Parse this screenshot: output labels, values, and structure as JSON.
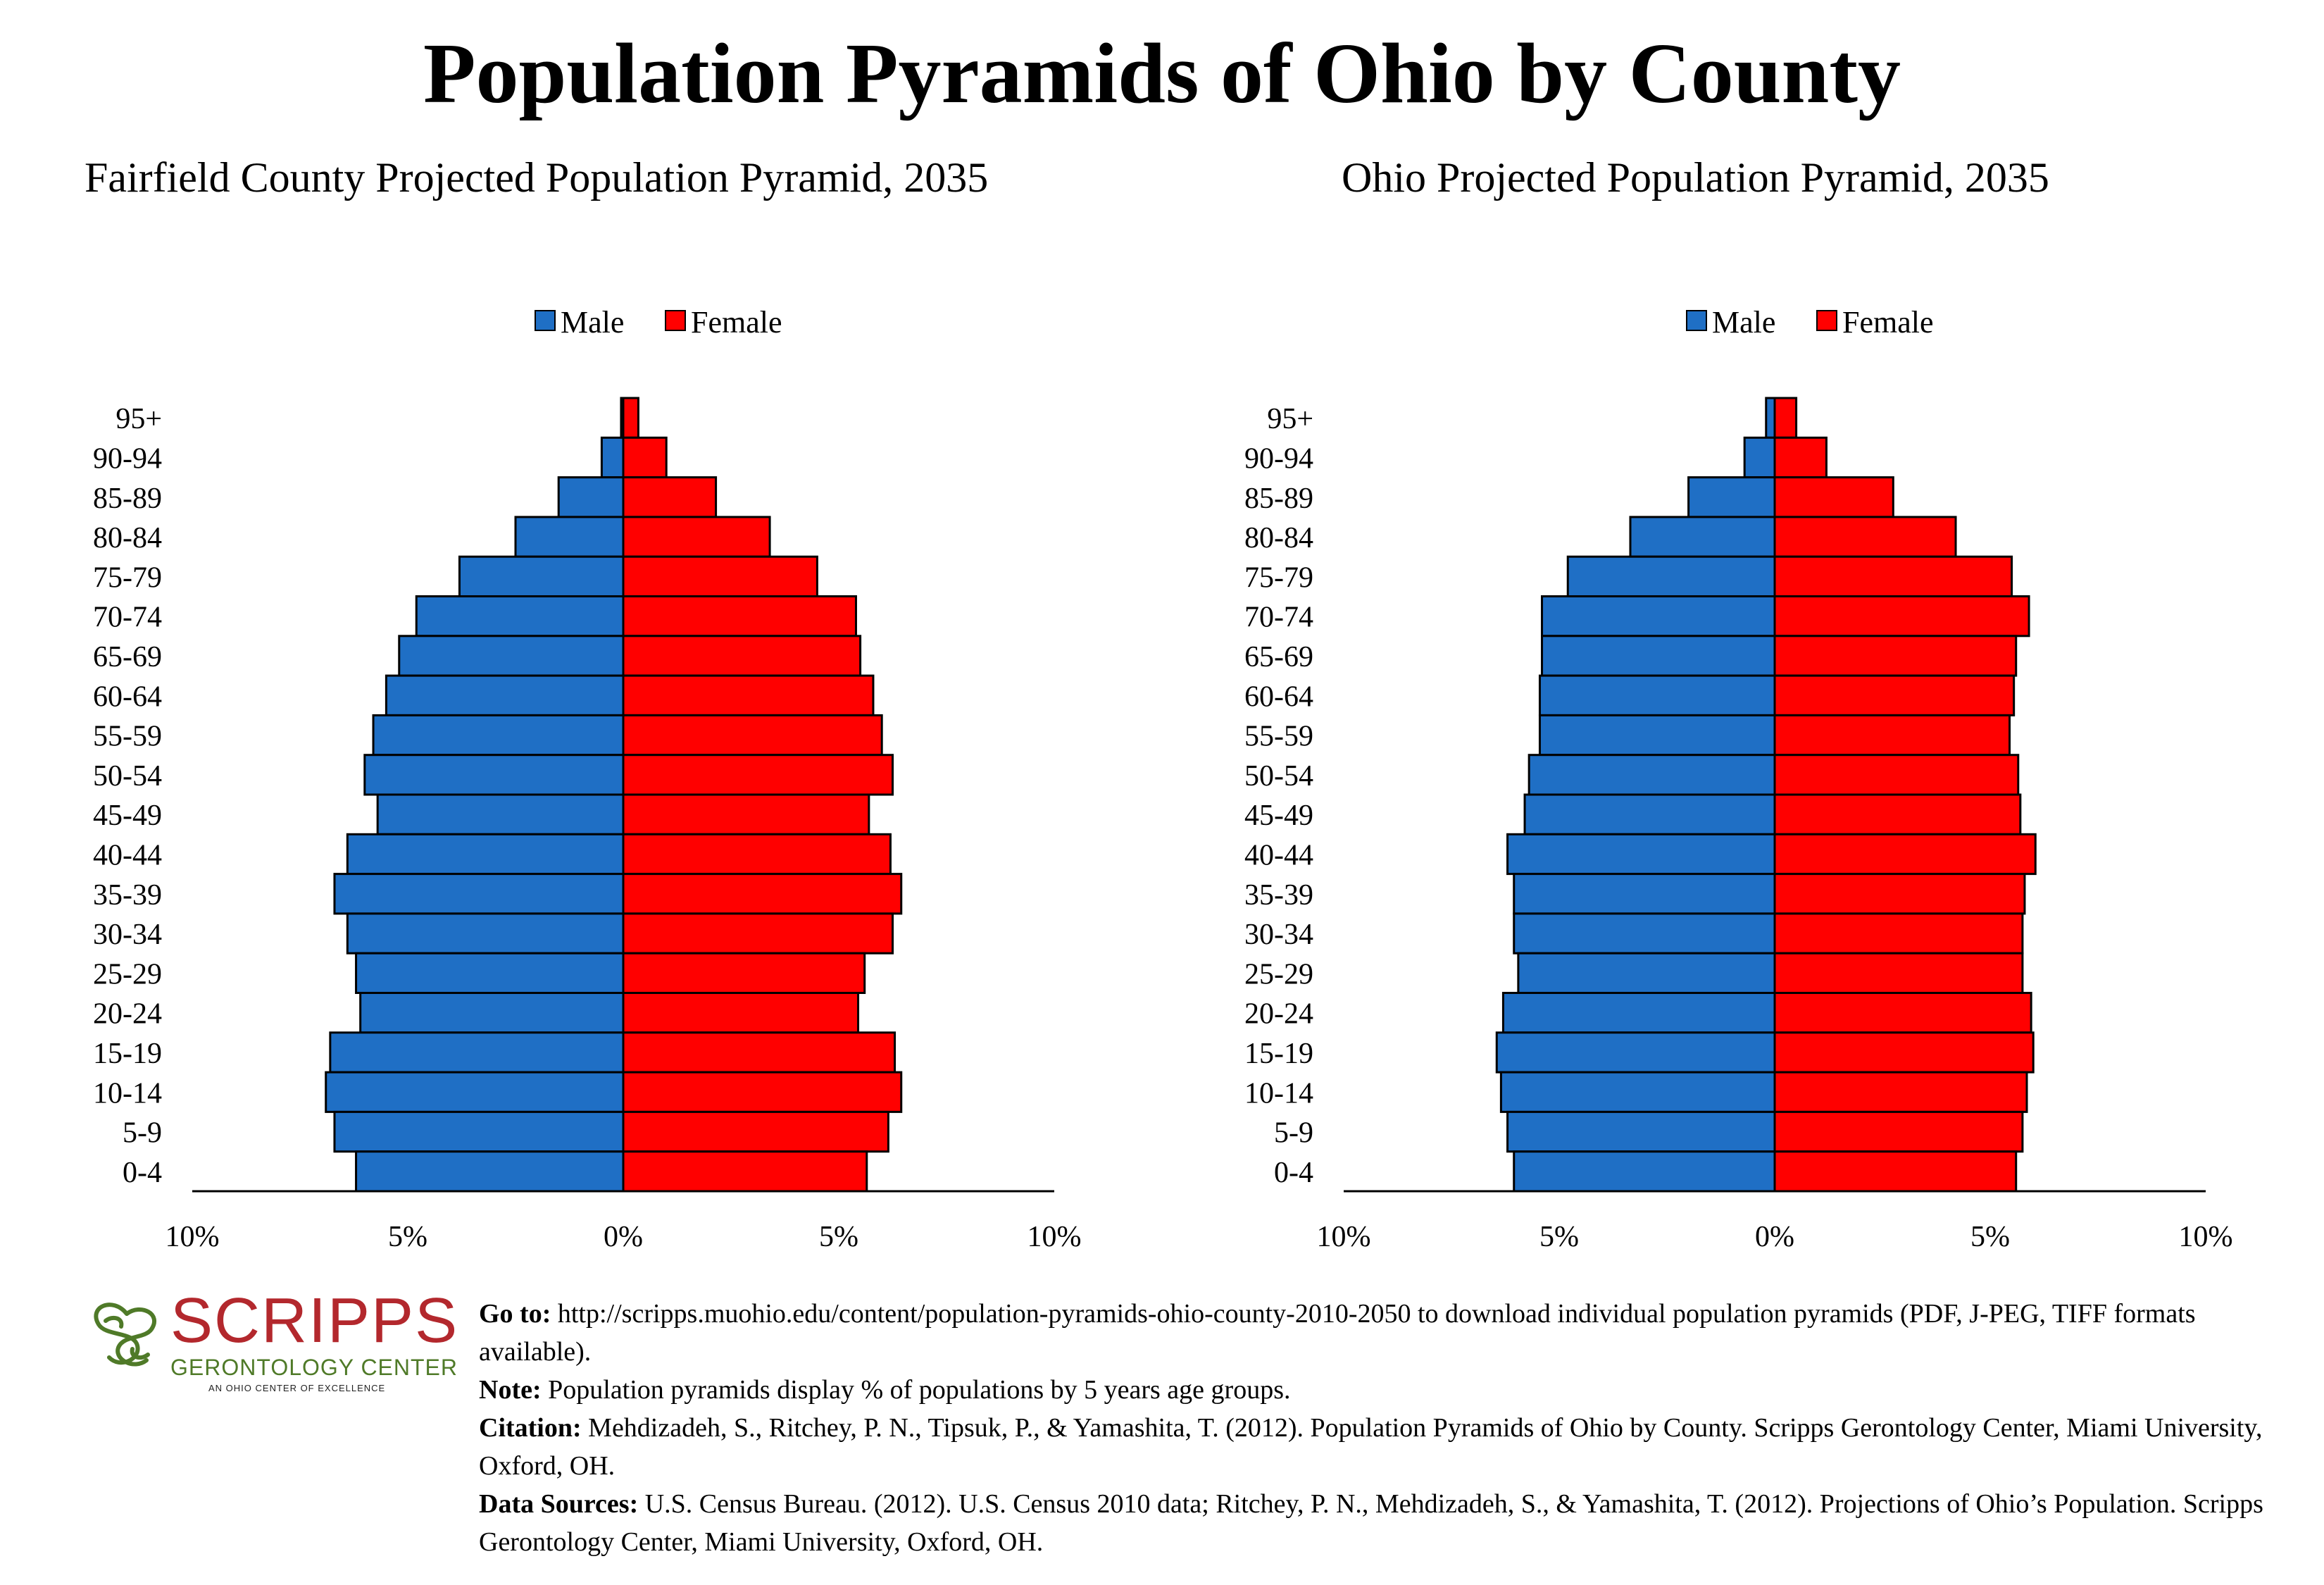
{
  "title": "Population Pyramids of Ohio by County",
  "age_groups": [
    "95+",
    "90-94",
    "85-89",
    "80-84",
    "75-79",
    "70-74",
    "65-69",
    "60-64",
    "55-59",
    "50-54",
    "45-49",
    "40-44",
    "35-39",
    "30-34",
    "25-29",
    "20-24",
    "15-19",
    "10-14",
    "5-9",
    "0-4"
  ],
  "x_ticks": [
    "10%",
    "5%",
    "0%",
    "5%",
    "10%"
  ],
  "colors": {
    "male": "#1f6fc5",
    "female": "#ff0000",
    "logo_red": "#b3282d",
    "logo_green": "#4f7a28"
  },
  "chart_data": [
    {
      "type": "bar",
      "orientation": "horizontal-pyramid",
      "title": "Fairfield County Projected Population Pyramid, 2035",
      "unit": "% of population",
      "xlim": [
        -10,
        10
      ],
      "legend": {
        "placement": "top-center",
        "items": [
          "Male",
          "Female"
        ]
      },
      "categories": [
        "95+",
        "90-94",
        "85-89",
        "80-84",
        "75-79",
        "70-74",
        "65-69",
        "60-64",
        "55-59",
        "50-54",
        "45-49",
        "40-44",
        "35-39",
        "30-34",
        "25-29",
        "20-24",
        "15-19",
        "10-14",
        "5-9",
        "0-4"
      ],
      "series": [
        {
          "name": "Male",
          "values": [
            0.05,
            0.5,
            1.5,
            2.5,
            3.8,
            4.8,
            5.2,
            5.5,
            5.8,
            6.0,
            5.7,
            6.4,
            6.7,
            6.4,
            6.2,
            6.1,
            6.8,
            6.9,
            6.7,
            6.2
          ]
        },
        {
          "name": "Female",
          "values": [
            0.35,
            1.0,
            2.15,
            3.4,
            4.5,
            5.4,
            5.5,
            5.8,
            6.0,
            6.25,
            5.7,
            6.2,
            6.45,
            6.25,
            5.6,
            5.45,
            6.3,
            6.45,
            6.15,
            5.65
          ]
        }
      ]
    },
    {
      "type": "bar",
      "orientation": "horizontal-pyramid",
      "title": "Ohio Projected Population Pyramid, 2035",
      "unit": "% of population",
      "xlim": [
        -10,
        10
      ],
      "legend": {
        "placement": "top-center",
        "items": [
          "Male",
          "Female"
        ]
      },
      "categories": [
        "95+",
        "90-94",
        "85-89",
        "80-84",
        "75-79",
        "70-74",
        "65-69",
        "60-64",
        "55-59",
        "50-54",
        "45-49",
        "40-44",
        "35-39",
        "30-34",
        "25-29",
        "20-24",
        "15-19",
        "10-14",
        "5-9",
        "0-4"
      ],
      "series": [
        {
          "name": "Male",
          "values": [
            0.2,
            0.7,
            2.0,
            3.35,
            4.8,
            5.4,
            5.4,
            5.45,
            5.45,
            5.7,
            5.8,
            6.2,
            6.05,
            6.05,
            5.95,
            6.3,
            6.45,
            6.35,
            6.2,
            6.05
          ]
        },
        {
          "name": "Female",
          "values": [
            0.5,
            1.2,
            2.75,
            4.2,
            5.5,
            5.9,
            5.6,
            5.55,
            5.45,
            5.65,
            5.7,
            6.05,
            5.8,
            5.75,
            5.75,
            5.95,
            6.0,
            5.85,
            5.75,
            5.6
          ]
        }
      ]
    }
  ],
  "footer": {
    "logo": {
      "word": "SCRIPPS",
      "sub": "GERONTOLOGY CENTER",
      "tagline": "AN OHIO CENTER OF EXCELLENCE"
    },
    "goto_label": "Go to:",
    "goto_text": "http://scripps.muohio.edu/content/population-pyramids-ohio-county-2010-2050 to download individual population pyramids (PDF, J-PEG, TIFF formats available).",
    "note_label": "Note:",
    "note_text": "Population pyramids display % of populations by 5 years age groups.",
    "citation_label": "Citation:",
    "citation_text": "Mehdizadeh, S., Ritchey, P. N., Tipsuk, P., & Yamashita, T. (2012). Population Pyramids of Ohio by County. Scripps Gerontology Center, Miami University, Oxford, OH.",
    "sources_label": "Data Sources:",
    "sources_text": "U.S. Census Bureau. (2012). U.S. Census 2010 data; Ritchey, P. N., Mehdizadeh, S., & Yamashita, T. (2012). Projections of Ohio’s Population. Scripps Gerontology Center, Miami University, Oxford, OH."
  }
}
